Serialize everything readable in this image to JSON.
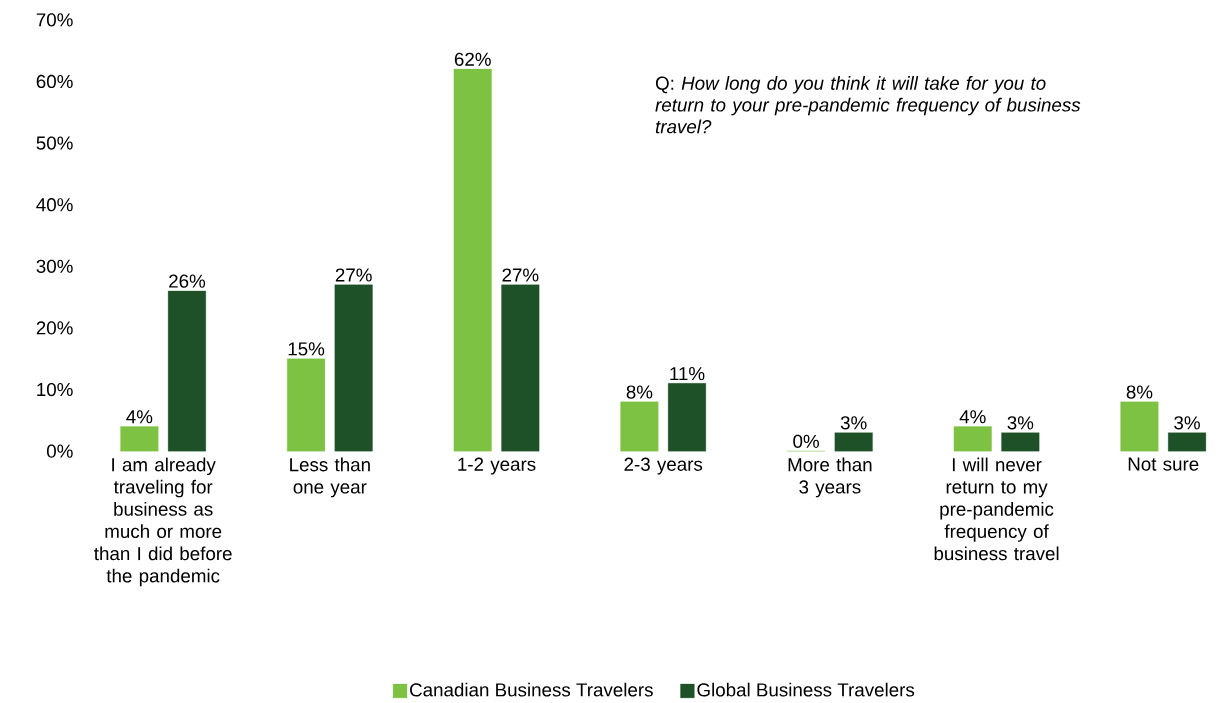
{
  "chart_data": {
    "type": "bar",
    "categories": [
      "I am already traveling for business as much or more than I did before the pandemic",
      "Less than one year",
      "1-2 years",
      "2-3 years",
      "More than 3 years",
      "I will never return to my pre-pandemic frequency of business travel",
      "Not sure"
    ],
    "series": [
      {
        "name": "Canadian Business Travelers",
        "color": "#7dc242",
        "values": [
          4,
          15,
          62,
          8,
          0,
          4,
          8
        ],
        "value_labels": [
          "4%",
          "15%",
          "62%",
          "8%",
          "0%",
          "4%",
          "8%"
        ]
      },
      {
        "name": "Global Business Travelers",
        "color": "#1e5128",
        "values": [
          26,
          27,
          27,
          11,
          3,
          3,
          3
        ],
        "value_labels": [
          "26%",
          "27%",
          "27%",
          "11%",
          "3%",
          "3%",
          "3%"
        ]
      }
    ],
    "ylim": [
      0,
      70
    ],
    "yticks": [
      {
        "value": 0,
        "label": "0%"
      },
      {
        "value": 10,
        "label": "10%"
      },
      {
        "value": 20,
        "label": "20%"
      },
      {
        "value": 30,
        "label": "30%"
      },
      {
        "value": 40,
        "label": "40%"
      },
      {
        "value": 50,
        "label": "50%"
      },
      {
        "value": 60,
        "label": "60%"
      },
      {
        "value": 70,
        "label": "70%"
      }
    ],
    "annotations": [
      "Q: *How long do you think it will take for you to return to your pre-pandemic frequency of business travel?*"
    ],
    "legend": "bottom"
  }
}
